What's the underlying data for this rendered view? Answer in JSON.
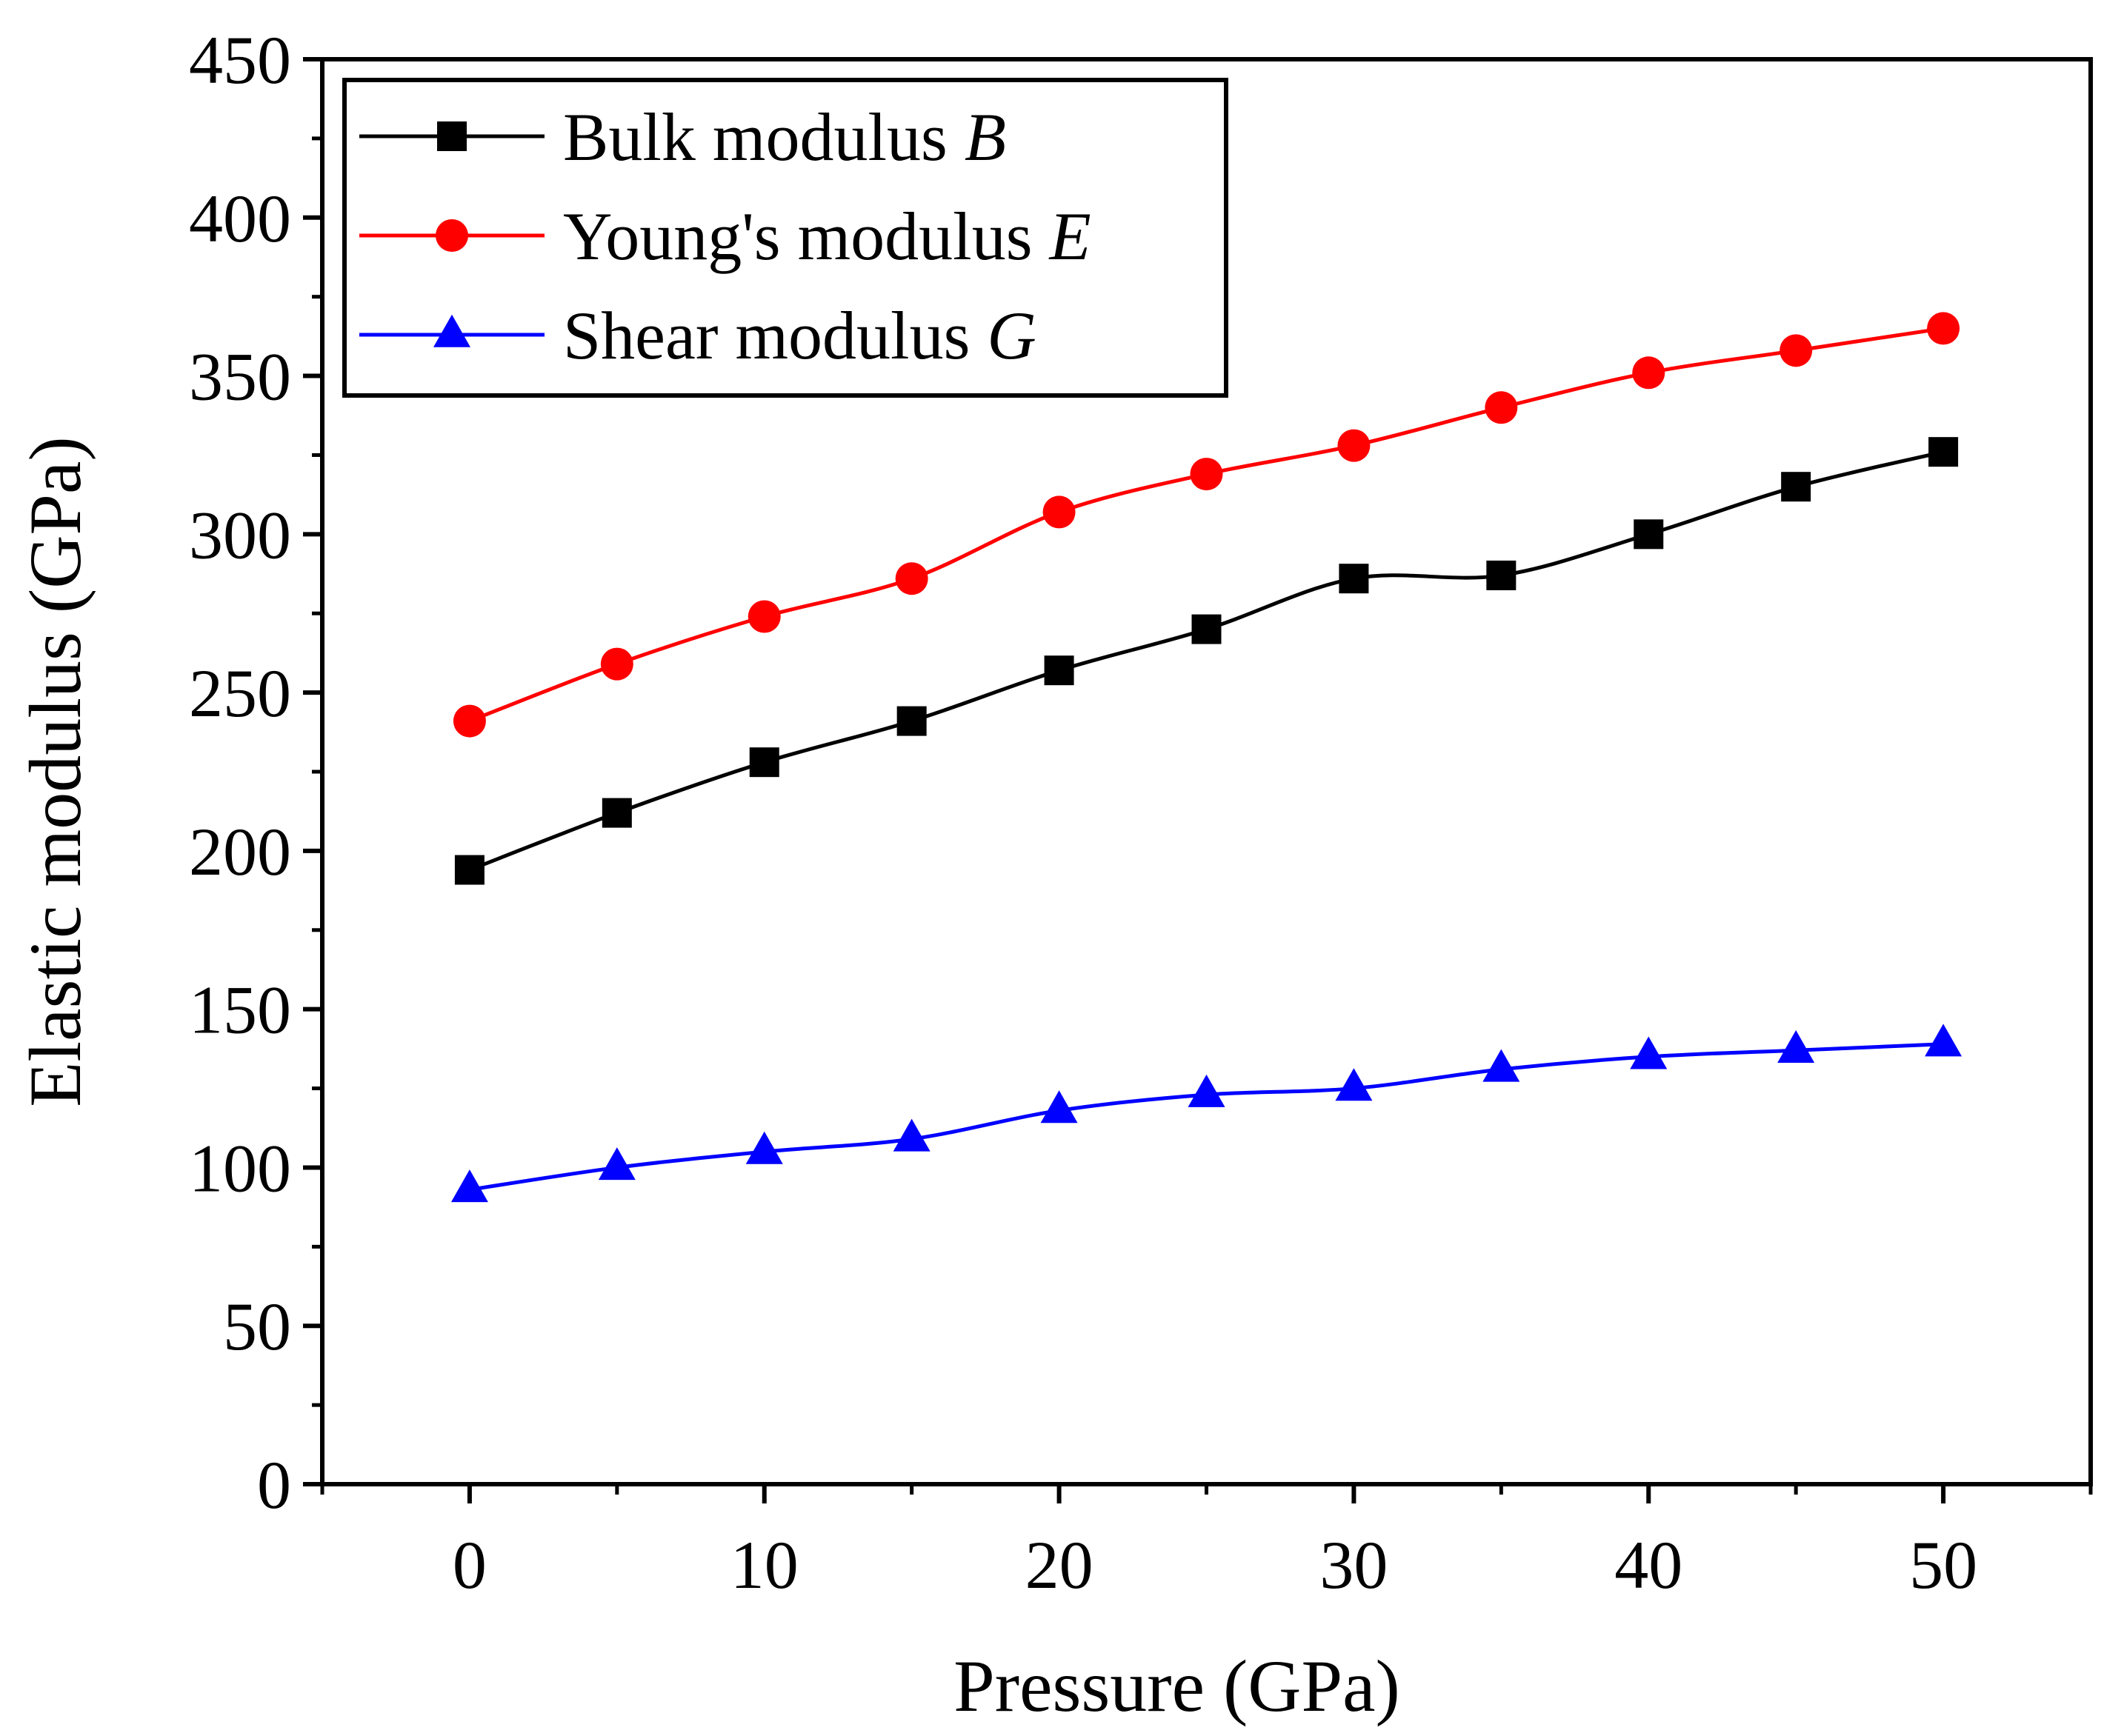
{
  "chart_data": {
    "type": "line",
    "title": "",
    "xlabel": "Pressure (GPa)",
    "ylabel": "Elastic modulus (GPa)",
    "xlim": [
      -5,
      55
    ],
    "ylim": [
      0,
      450
    ],
    "xticks": [
      0,
      10,
      20,
      30,
      40,
      50
    ],
    "yticks": [
      0,
      50,
      100,
      150,
      200,
      250,
      300,
      350,
      400,
      450
    ],
    "grid": false,
    "legend_position": "top-left",
    "x": [
      0,
      5,
      10,
      15,
      20,
      25,
      30,
      35,
      40,
      45,
      50
    ],
    "series": [
      {
        "name": "Bulk modulus",
        "symbol": "B",
        "color": "#000000",
        "marker": "square",
        "values": [
          194,
          212,
          228,
          241,
          257,
          270,
          286,
          287,
          300,
          315,
          326
        ]
      },
      {
        "name": "Young's modulus",
        "symbol": "E",
        "color": "#ff0000",
        "marker": "circle",
        "values": [
          241,
          259,
          274,
          286,
          307,
          319,
          328,
          340,
          351,
          358,
          365
        ]
      },
      {
        "name": "Shear modulus",
        "symbol": "G",
        "color": "#0000ff",
        "marker": "triangle",
        "values": [
          93,
          100,
          105,
          109,
          118,
          123,
          125,
          131,
          135,
          137,
          139
        ]
      }
    ]
  }
}
